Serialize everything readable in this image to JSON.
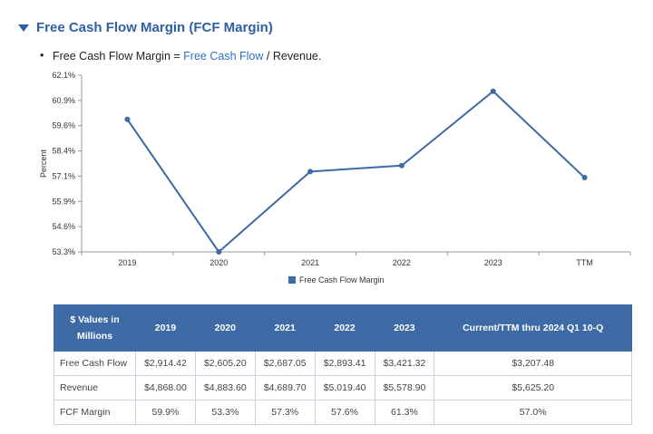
{
  "section": {
    "title": "Free Cash Flow Margin (FCF Margin)",
    "formula": {
      "bullet": "•",
      "term": "Free Cash Flow Margin =",
      "link": "Free Cash Flow",
      "rest": "/ Revenue."
    }
  },
  "chart_data": {
    "type": "line",
    "categories": [
      "2019",
      "2020",
      "2021",
      "2022",
      "2023",
      "TTM"
    ],
    "series": [
      {
        "name": "Free Cash Flow Margin",
        "values": [
          59.9,
          53.3,
          57.3,
          57.6,
          61.3,
          57.0
        ]
      }
    ],
    "ylabel": "Percent",
    "yticks": [
      "62.1%",
      "60.9%",
      "59.6%",
      "58.4%",
      "57.1%",
      "55.9%",
      "54.6%",
      "53.3%"
    ],
    "ylim": [
      53.3,
      62.1
    ],
    "legend": "bottom",
    "color": "#3e6aa5"
  },
  "table": {
    "headers": [
      "$ Values in Millions",
      "2019",
      "2020",
      "2021",
      "2022",
      "2023",
      "Current/TTM thru 2024 Q1 10-Q"
    ],
    "rows": [
      {
        "label": "Free Cash Flow",
        "values": [
          "$2,914.42",
          "$2,605.20",
          "$2,687.05",
          "$2,893.41",
          "$3,421.32",
          "$3,207.48"
        ]
      },
      {
        "label": "Revenue",
        "values": [
          "$4,868.00",
          "$4,883.60",
          "$4,689.70",
          "$5,019.40",
          "$5,578.90",
          "$5,625.20"
        ]
      },
      {
        "label": "FCF Margin",
        "values": [
          "59.9%",
          "53.3%",
          "57.3%",
          "57.6%",
          "61.3%",
          "57.0%"
        ]
      }
    ]
  }
}
